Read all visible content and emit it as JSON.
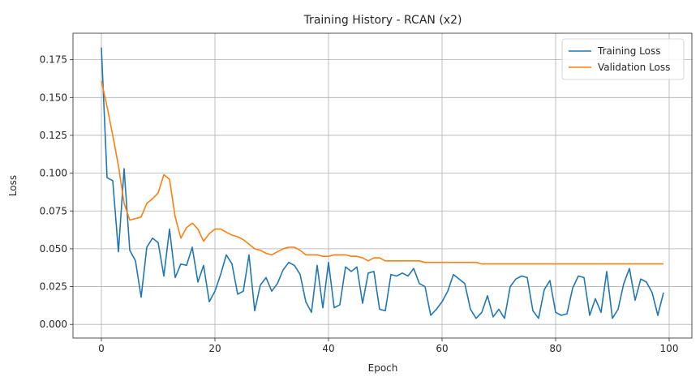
{
  "chart_data": {
    "type": "line",
    "title": "Training History - RCAN (x2)",
    "xlabel": "Epoch",
    "ylabel": "Loss",
    "xlim": [
      -5,
      104
    ],
    "ylim": [
      -0.009,
      0.1925
    ],
    "xticks": [
      0,
      20,
      40,
      60,
      80,
      100
    ],
    "xtick_labels": [
      "0",
      "20",
      "40",
      "60",
      "80",
      "100"
    ],
    "yticks": [
      0.0,
      0.025,
      0.05,
      0.075,
      0.1,
      0.125,
      0.15,
      0.175
    ],
    "ytick_labels": [
      "0.000",
      "0.025",
      "0.050",
      "0.075",
      "0.100",
      "0.125",
      "0.150",
      "0.175"
    ],
    "grid": true,
    "legend_position": "top-right",
    "series": [
      {
        "name": "Training Loss",
        "color": "#1f77b4",
        "values": [
          0.183,
          0.097,
          0.095,
          0.048,
          0.103,
          0.049,
          0.042,
          0.018,
          0.051,
          0.057,
          0.054,
          0.032,
          0.063,
          0.031,
          0.04,
          0.039,
          0.051,
          0.028,
          0.039,
          0.015,
          0.022,
          0.033,
          0.046,
          0.04,
          0.02,
          0.022,
          0.046,
          0.009,
          0.026,
          0.031,
          0.022,
          0.027,
          0.036,
          0.041,
          0.039,
          0.033,
          0.015,
          0.008,
          0.039,
          0.011,
          0.041,
          0.011,
          0.013,
          0.038,
          0.035,
          0.038,
          0.014,
          0.034,
          0.035,
          0.01,
          0.009,
          0.033,
          0.032,
          0.034,
          0.032,
          0.037,
          0.027,
          0.025,
          0.006,
          0.01,
          0.015,
          0.022,
          0.033,
          0.03,
          0.027,
          0.01,
          0.004,
          0.008,
          0.019,
          0.005,
          0.01,
          0.004,
          0.025,
          0.03,
          0.032,
          0.031,
          0.009,
          0.004,
          0.023,
          0.029,
          0.008,
          0.006,
          0.007,
          0.024,
          0.032,
          0.031,
          0.006,
          0.017,
          0.008,
          0.035,
          0.004,
          0.01,
          0.027,
          0.037,
          0.016,
          0.03,
          0.028,
          0.021,
          0.006,
          0.021
        ]
      },
      {
        "name": "Validation Loss",
        "color": "#ff7f0e",
        "values": [
          0.161,
          0.144,
          0.125,
          0.105,
          0.08,
          0.069,
          0.07,
          0.071,
          0.08,
          0.083,
          0.087,
          0.099,
          0.096,
          0.071,
          0.057,
          0.064,
          0.067,
          0.063,
          0.055,
          0.06,
          0.063,
          0.063,
          0.061,
          0.059,
          0.058,
          0.056,
          0.053,
          0.05,
          0.049,
          0.047,
          0.046,
          0.048,
          0.05,
          0.051,
          0.051,
          0.049,
          0.046,
          0.046,
          0.046,
          0.045,
          0.045,
          0.046,
          0.046,
          0.046,
          0.045,
          0.045,
          0.044,
          0.042,
          0.044,
          0.044,
          0.042,
          0.042,
          0.042,
          0.042,
          0.042,
          0.042,
          0.042,
          0.041,
          0.041,
          0.041,
          0.041,
          0.041,
          0.041,
          0.041,
          0.041,
          0.041,
          0.041,
          0.04,
          0.04,
          0.04,
          0.04,
          0.04,
          0.04,
          0.04,
          0.04,
          0.04,
          0.04,
          0.04,
          0.04,
          0.04,
          0.04,
          0.04,
          0.04,
          0.04,
          0.04,
          0.04,
          0.04,
          0.04,
          0.04,
          0.04,
          0.04,
          0.04,
          0.04,
          0.04,
          0.04,
          0.04,
          0.04,
          0.04,
          0.04,
          0.04
        ]
      }
    ]
  }
}
